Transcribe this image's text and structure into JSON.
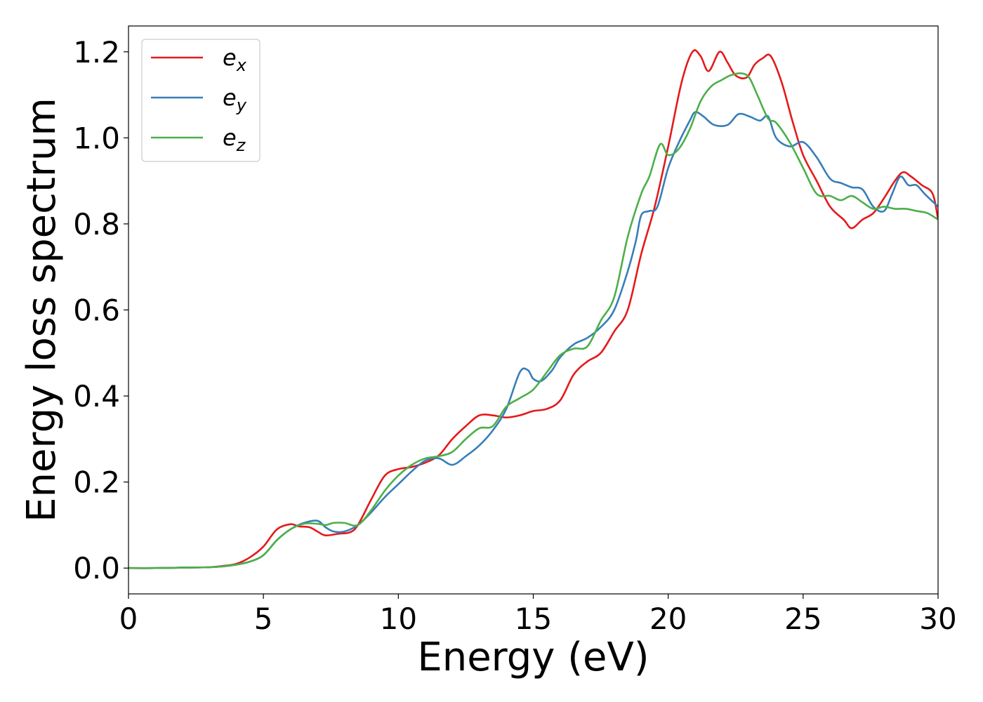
{
  "chart_data": {
    "type": "line",
    "title": "",
    "xlabel": "Energy (eV)",
    "ylabel": "Energy loss spectrum",
    "xlim": [
      0,
      30
    ],
    "ylim": [
      -0.06,
      1.26
    ],
    "xticks": [
      0,
      5,
      10,
      15,
      20,
      25,
      30
    ],
    "xtick_labels": [
      "0",
      "5",
      "10",
      "15",
      "20",
      "25",
      "30"
    ],
    "yticks": [
      0.0,
      0.2,
      0.4,
      0.6,
      0.8,
      1.0,
      1.2
    ],
    "ytick_labels": [
      "0.0",
      "0.2",
      "0.4",
      "0.6",
      "0.8",
      "1.0",
      "1.2"
    ],
    "grid": false,
    "legend_position": "top-left",
    "series": [
      {
        "name": "e",
        "subscript": "x",
        "color": "#e41a1c",
        "x": [
          0,
          1,
          2,
          3,
          3.5,
          4,
          4.5,
          5,
          5.5,
          6,
          6.3,
          6.7,
          7,
          7.3,
          7.8,
          8.2,
          8.5,
          9,
          9.5,
          10,
          10.5,
          11,
          11.5,
          12,
          12.5,
          13,
          13.5,
          14,
          14.5,
          15,
          15.5,
          16,
          16.5,
          17,
          17.5,
          18,
          18.5,
          19,
          19.5,
          20,
          20.5,
          20.9,
          21.2,
          21.5,
          21.9,
          22.2,
          22.5,
          22.9,
          23.2,
          23.5,
          23.8,
          24.2,
          24.6,
          25,
          25.5,
          26,
          26.5,
          26.8,
          27.2,
          27.6,
          28,
          28.4,
          28.7,
          29,
          29.4,
          29.8,
          30
        ],
        "y": [
          0.0,
          0.0,
          0.001,
          0.002,
          0.005,
          0.01,
          0.025,
          0.05,
          0.09,
          0.102,
          0.097,
          0.095,
          0.085,
          0.076,
          0.08,
          0.083,
          0.1,
          0.16,
          0.215,
          0.23,
          0.235,
          0.245,
          0.262,
          0.3,
          0.33,
          0.355,
          0.355,
          0.35,
          0.355,
          0.365,
          0.37,
          0.39,
          0.45,
          0.48,
          0.5,
          0.55,
          0.6,
          0.73,
          0.84,
          0.98,
          1.13,
          1.2,
          1.19,
          1.155,
          1.2,
          1.175,
          1.145,
          1.14,
          1.17,
          1.185,
          1.19,
          1.13,
          1.04,
          0.96,
          0.9,
          0.84,
          0.81,
          0.79,
          0.81,
          0.825,
          0.86,
          0.9,
          0.92,
          0.91,
          0.89,
          0.87,
          0.81
        ]
      },
      {
        "name": "e",
        "subscript": "y",
        "color": "#377eb8",
        "x": [
          0,
          1,
          2,
          3,
          3.5,
          4,
          4.5,
          5,
          5.5,
          6,
          6.5,
          7,
          7.3,
          7.6,
          8,
          8.5,
          9,
          9.5,
          10,
          10.5,
          11,
          11.5,
          12,
          12.5,
          13,
          13.5,
          14,
          14.5,
          14.8,
          15,
          15.3,
          15.7,
          16,
          16.5,
          17,
          17.5,
          18,
          18.5,
          18.8,
          19,
          19.3,
          19.6,
          20,
          20.4,
          20.8,
          21,
          21.3,
          21.7,
          22.2,
          22.6,
          23,
          23.4,
          23.7,
          24,
          24.5,
          25,
          25.5,
          26,
          26.4,
          26.8,
          27.2,
          27.6,
          28,
          28.3,
          28.6,
          28.9,
          29.2,
          29.5,
          30
        ],
        "y": [
          0.0,
          0.0,
          0.001,
          0.002,
          0.004,
          0.008,
          0.015,
          0.03,
          0.065,
          0.09,
          0.105,
          0.11,
          0.095,
          0.085,
          0.085,
          0.1,
          0.13,
          0.165,
          0.195,
          0.225,
          0.25,
          0.255,
          0.24,
          0.26,
          0.285,
          0.32,
          0.37,
          0.455,
          0.46,
          0.44,
          0.435,
          0.46,
          0.49,
          0.52,
          0.535,
          0.56,
          0.6,
          0.69,
          0.76,
          0.82,
          0.83,
          0.84,
          0.93,
          0.99,
          1.04,
          1.06,
          1.05,
          1.03,
          1.03,
          1.055,
          1.05,
          1.04,
          1.05,
          1.0,
          0.98,
          0.99,
          0.955,
          0.905,
          0.895,
          0.885,
          0.88,
          0.84,
          0.83,
          0.87,
          0.91,
          0.89,
          0.89,
          0.87,
          0.84
        ]
      },
      {
        "name": "e",
        "subscript": "z",
        "color": "#4daf4a",
        "x": [
          0,
          1,
          2,
          3,
          3.5,
          4,
          4.5,
          5,
          5.5,
          6,
          6.5,
          7,
          7.3,
          7.6,
          8,
          8.5,
          9,
          9.5,
          10,
          10.5,
          11,
          11.5,
          12,
          12.5,
          13,
          13.5,
          14,
          14.5,
          15,
          15.5,
          16,
          16.5,
          17,
          17.5,
          18,
          18.5,
          19,
          19.3,
          19.7,
          20,
          20.4,
          20.8,
          21.2,
          21.6,
          22,
          22.3,
          22.7,
          23,
          23.3,
          23.7,
          24,
          24.5,
          25,
          25.5,
          26,
          26.4,
          26.8,
          27.2,
          27.6,
          28,
          28.4,
          28.8,
          29.2,
          29.6,
          30
        ],
        "y": [
          0.0,
          0.0,
          0.001,
          0.002,
          0.004,
          0.008,
          0.015,
          0.03,
          0.065,
          0.09,
          0.103,
          0.103,
          0.1,
          0.105,
          0.105,
          0.1,
          0.135,
          0.18,
          0.215,
          0.24,
          0.255,
          0.26,
          0.27,
          0.3,
          0.325,
          0.33,
          0.375,
          0.395,
          0.415,
          0.455,
          0.495,
          0.51,
          0.515,
          0.575,
          0.63,
          0.77,
          0.87,
          0.91,
          0.985,
          0.96,
          0.975,
          1.02,
          1.085,
          1.12,
          1.135,
          1.145,
          1.15,
          1.14,
          1.1,
          1.045,
          1.035,
          0.99,
          0.93,
          0.87,
          0.865,
          0.855,
          0.865,
          0.85,
          0.835,
          0.84,
          0.835,
          0.835,
          0.83,
          0.825,
          0.81
        ]
      }
    ]
  }
}
